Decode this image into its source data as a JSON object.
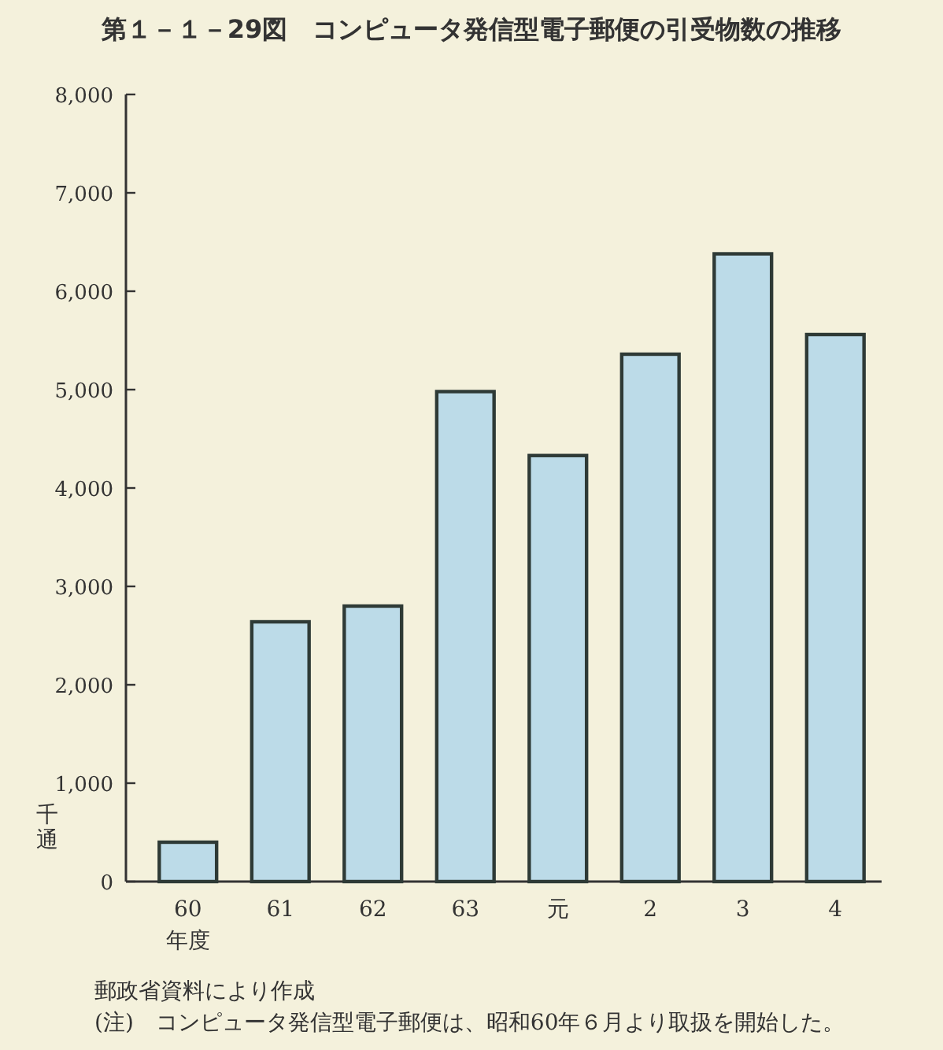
{
  "chart_data": {
    "type": "bar",
    "title": "第１－１－29図　コンピュータ発信型電子郵便の引受物数の推移",
    "categories": [
      "60",
      "61",
      "62",
      "63",
      "元",
      "2",
      "3",
      "4"
    ],
    "values": [
      400,
      2640,
      2800,
      4980,
      4330,
      5360,
      6380,
      5560
    ],
    "color": "#bcdbe8",
    "xlabel": "年度",
    "ylabel": "千通",
    "ylim": [
      0,
      8000
    ],
    "yticks": [
      0,
      {
        "value": 1000,
        "label": "1,000"
      },
      {
        "value": 2000,
        "label": "2,000"
      },
      {
        "value": 3000,
        "label": "3,000"
      },
      {
        "value": 4000,
        "label": "4,000"
      },
      {
        "value": 5000,
        "label": "5,000"
      },
      {
        "value": 6000,
        "label": "6,000"
      },
      {
        "value": 7000,
        "label": "7,000"
      },
      {
        "value": 8000,
        "label": "8,000"
      }
    ],
    "grid": false,
    "annotations": [
      "郵政省資料により作成",
      "(注)　コンピュータ発信型電子郵便は、昭和60年６月より取扱を開始した。"
    ]
  }
}
